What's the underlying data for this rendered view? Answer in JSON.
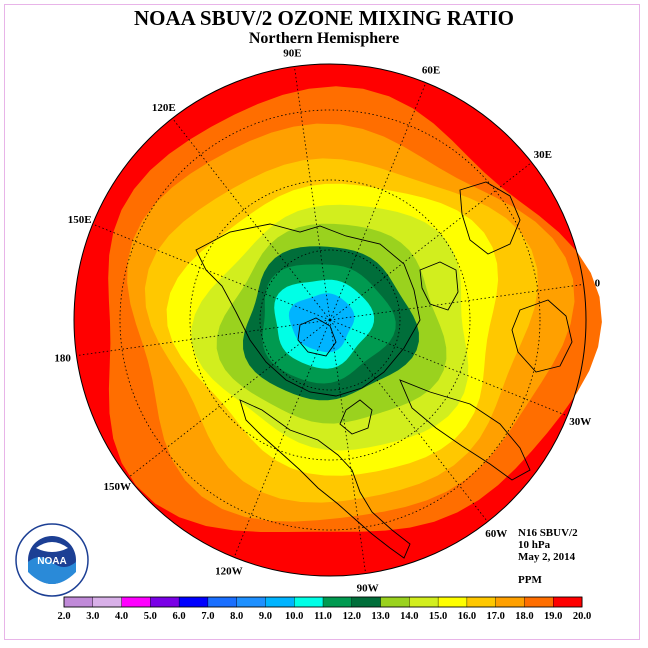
{
  "title": "NOAA SBUV/2 OZONE MIXING RATIO",
  "subtitle": "Northern Hemisphere",
  "longitude_labels": [
    {
      "label": "90E",
      "lon": 90
    },
    {
      "label": "60E",
      "lon": 60
    },
    {
      "label": "30E",
      "lon": 30
    },
    {
      "label": "0",
      "lon": 0
    },
    {
      "label": "30W",
      "lon": -30
    },
    {
      "label": "60W",
      "lon": -60
    },
    {
      "label": "90W",
      "lon": -90
    },
    {
      "label": "120W",
      "lon": -120
    },
    {
      "label": "150W",
      "lon": -150
    },
    {
      "label": "180",
      "lon": 180
    },
    {
      "label": "150E",
      "lon": 150
    },
    {
      "label": "120E",
      "lon": 120
    }
  ],
  "info": {
    "instrument": "N16 SBUV/2",
    "level": "10 hPa",
    "date": "May 2, 2014",
    "units": "PPM"
  },
  "logo": {
    "text": "NOAA"
  },
  "colorbar": {
    "ticks": [
      "2.0",
      "3.0",
      "4.0",
      "5.0",
      "6.0",
      "7.0",
      "8.0",
      "9.0",
      "10.0",
      "11.0",
      "12.0",
      "13.0",
      "14.0",
      "15.0",
      "16.0",
      "17.0",
      "18.0",
      "19.0",
      "20.0"
    ],
    "colors": [
      "#c08ad8",
      "#d8b0e8",
      "#ff00ff",
      "#7a00e6",
      "#0000ff",
      "#1a6fff",
      "#1e90ff",
      "#00b4ff",
      "#00ffe6",
      "#009a50",
      "#006e3a",
      "#9ad21e",
      "#d2ee1e",
      "#ffff00",
      "#ffc800",
      "#ffa000",
      "#ff6e00",
      "#ff0000",
      "#8a5a44"
    ]
  },
  "ozone_bands": [
    {
      "ppm_min": 18.0,
      "color": "#ff0000"
    },
    {
      "ppm_min": 17.0,
      "color": "#ff6e00"
    },
    {
      "ppm_min": 16.0,
      "color": "#ffa000"
    },
    {
      "ppm_min": 15.0,
      "color": "#ffc800"
    },
    {
      "ppm_min": 14.0,
      "color": "#ffff00"
    },
    {
      "ppm_min": 13.0,
      "color": "#d2ee1e"
    },
    {
      "ppm_min": 12.0,
      "color": "#9ad21e"
    },
    {
      "ppm_min": 11.0,
      "color": "#006e3a"
    },
    {
      "ppm_min": 10.0,
      "color": "#009a50"
    },
    {
      "ppm_min": 9.0,
      "color": "#00ffe6"
    },
    {
      "ppm_min": 8.0,
      "color": "#00b4ff"
    }
  ],
  "colors": {
    "coastline": "#000000",
    "grid": "#000000",
    "frame": "#e8b4e8"
  }
}
